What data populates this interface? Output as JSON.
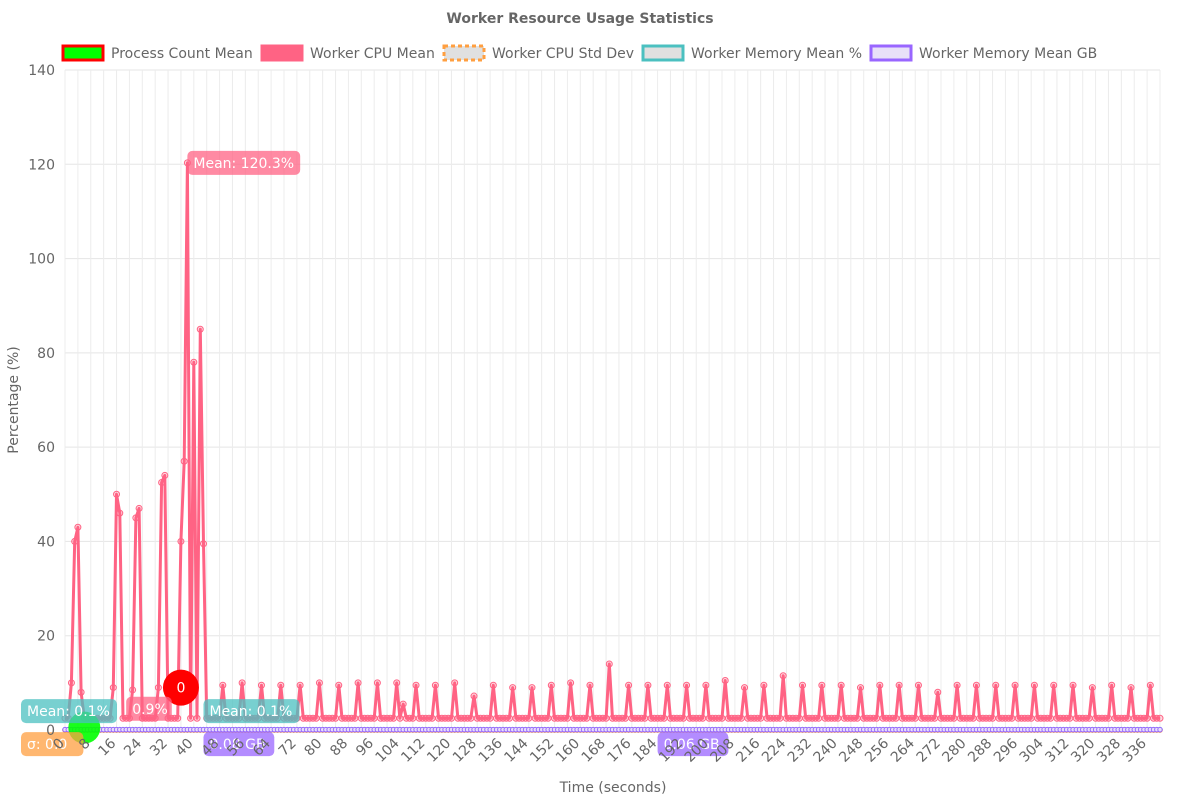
{
  "chart_data": {
    "type": "line",
    "title": "Worker Resource Usage Statistics",
    "xlabel": "Time (seconds)",
    "ylabel": "Percentage (%)",
    "ylim": [
      0,
      140
    ],
    "xlim": [
      0,
      340
    ],
    "yticks": [
      0,
      20,
      40,
      60,
      80,
      100,
      120,
      140
    ],
    "xticks": [
      0,
      8,
      16,
      24,
      32,
      40,
      48,
      56,
      64,
      72,
      80,
      88,
      96,
      104,
      112,
      120,
      128,
      136,
      144,
      152,
      160,
      168,
      176,
      184,
      192,
      200,
      208,
      216,
      224,
      232,
      240,
      248,
      256,
      264,
      272,
      280,
      288,
      296,
      304,
      312,
      320,
      328,
      336
    ],
    "xtick_labels": [
      "0",
      "8",
      "16",
      "24",
      "32",
      "40",
      "48",
      "56",
      "64",
      "72",
      "80",
      "88",
      "96",
      "104",
      "112",
      "120",
      "128",
      "136",
      "144",
      "152",
      "160",
      "168",
      "176",
      "184",
      "192",
      "200",
      "208",
      "216",
      "224",
      "232",
      "240",
      "248",
      "256",
      "264",
      "272",
      "280",
      "288",
      "296",
      "304",
      "312",
      "320",
      "328",
      "336"
    ],
    "grid": true,
    "legend_position": "top",
    "series": [
      {
        "name": "Process Count Mean",
        "color": "#00ff00",
        "border": "#ff0000",
        "constant": 0
      },
      {
        "name": "Worker CPU Mean",
        "color": "#ff6384",
        "border": "#ff6384",
        "peaks": [
          [
            2,
            10
          ],
          [
            3,
            40
          ],
          [
            4,
            43
          ],
          [
            5,
            8
          ],
          [
            15,
            9
          ],
          [
            16,
            50
          ],
          [
            17,
            46
          ],
          [
            21,
            8.5
          ],
          [
            22,
            45
          ],
          [
            23,
            47
          ],
          [
            29,
            9
          ],
          [
            30,
            52.5
          ],
          [
            31,
            54
          ],
          [
            36,
            40
          ],
          [
            37,
            57
          ],
          [
            38,
            120.3
          ],
          [
            40,
            78
          ],
          [
            42,
            85
          ],
          [
            43,
            39.5
          ],
          [
            49,
            9.5
          ],
          [
            55,
            10
          ],
          [
            61,
            9.5
          ],
          [
            67,
            9.5
          ],
          [
            73,
            9.5
          ],
          [
            79,
            10
          ],
          [
            85,
            9.5
          ],
          [
            91,
            10
          ],
          [
            97,
            10
          ],
          [
            103,
            10
          ],
          [
            105,
            5.5
          ],
          [
            109,
            9.5
          ],
          [
            115,
            9.5
          ],
          [
            121,
            10
          ],
          [
            127,
            7.2
          ],
          [
            133,
            9.5
          ],
          [
            139,
            9
          ],
          [
            145,
            9
          ],
          [
            151,
            9.5
          ],
          [
            157,
            10
          ],
          [
            163,
            9.5
          ],
          [
            169,
            14
          ],
          [
            175,
            9.5
          ],
          [
            181,
            9.5
          ],
          [
            187,
            9.5
          ],
          [
            193,
            9.5
          ],
          [
            199,
            9.5
          ],
          [
            205,
            10.5
          ],
          [
            211,
            9
          ],
          [
            217,
            9.5
          ],
          [
            223,
            11.5
          ],
          [
            229,
            9.5
          ],
          [
            235,
            9.5
          ],
          [
            241,
            9.5
          ],
          [
            247,
            9
          ],
          [
            253,
            9.5
          ],
          [
            259,
            9.5
          ],
          [
            265,
            9.5
          ],
          [
            271,
            8
          ],
          [
            277,
            9.5
          ],
          [
            283,
            9.5
          ],
          [
            289,
            9.5
          ],
          [
            295,
            9.5
          ],
          [
            301,
            9.5
          ],
          [
            307,
            9.5
          ],
          [
            313,
            9.5
          ],
          [
            319,
            9
          ],
          [
            325,
            9.5
          ],
          [
            331,
            9
          ],
          [
            337,
            9.5
          ]
        ],
        "baseline": 2.5
      },
      {
        "name": "Worker CPU Std Dev",
        "color": "#e0e0e0",
        "border": "#ff9f40",
        "constant": 0
      },
      {
        "name": "Worker Memory Mean %",
        "color": "#e0e0e0",
        "border": "#4bc0c0",
        "constant": 0.1
      },
      {
        "name": "Worker Memory Mean GB",
        "color": "#e8e0f8",
        "border": "#9966ff",
        "constant": 0.08
      }
    ],
    "annotations": [
      {
        "text": "Mean: 120.3%",
        "x": 38,
        "y": 120.3,
        "color": "#ff6384"
      },
      {
        "text": "0",
        "x": 36,
        "y": 9,
        "color": "#ff0000"
      },
      {
        "text": "Mean: 0.1%",
        "x": 0,
        "y": 4,
        "color": "#4bc0c0"
      },
      {
        "text": "Mean: 0.1%",
        "x": 43,
        "y": 4,
        "color": "#4bc0c0"
      },
      {
        "text": "0.9%",
        "x": 19,
        "y": 4.5,
        "color": "#ff6384"
      },
      {
        "text": "σ: 0.0",
        "x": 0,
        "y": -3,
        "color": "#ff9f40"
      },
      {
        "text": "0.08 GB",
        "x": 43,
        "y": -3,
        "color": "#9966ff"
      },
      {
        "text": "0.06 GB",
        "x": 184,
        "y": -3,
        "color": "#9966ff"
      }
    ]
  }
}
